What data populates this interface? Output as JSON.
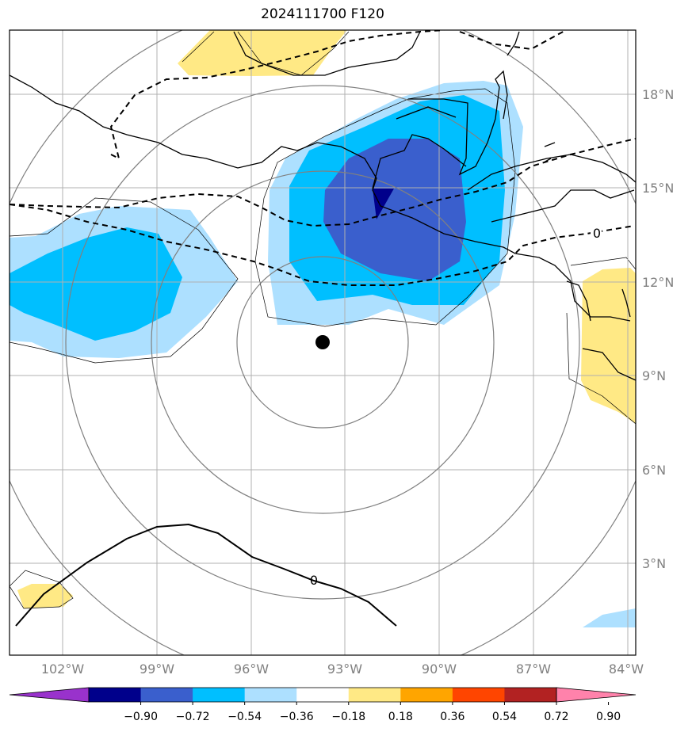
{
  "title": "2024111700 F120",
  "chart_data": {
    "type": "contour-map",
    "title": "2024111700 F120",
    "projection": "lat-lon",
    "lon_range": [
      -103.7,
      -83.8
    ],
    "lat_range": [
      0.8,
      20.7
    ],
    "lon_ticks": [
      "102°W",
      "99°W",
      "96°W",
      "93°W",
      "90°W",
      "87°W",
      "84°W"
    ],
    "lat_ticks": [
      "3°N",
      "6°N",
      "9°N",
      "12°N",
      "15°N",
      "18°N"
    ],
    "grid": true,
    "center_marker": {
      "lon": -93.8,
      "lat": 10.1
    },
    "range_rings": true,
    "contour_labels": [
      "0",
      "0"
    ],
    "colorbar": {
      "levels": [
        "−0.90",
        "−0.72",
        "−0.54",
        "−0.36",
        "−0.18",
        "0.18",
        "0.36",
        "0.54",
        "0.72",
        "0.90"
      ],
      "colors": [
        "#9932CC",
        "#00008B",
        "#3A5FCD",
        "#00BFFF",
        "#ADE0FF",
        "#FFFFFF",
        "#FFE985",
        "#FFA500",
        "#FF4500",
        "#B22222",
        "#FF82AB"
      ],
      "extend": "both"
    }
  }
}
